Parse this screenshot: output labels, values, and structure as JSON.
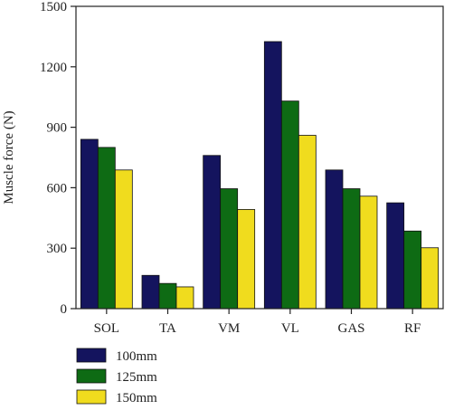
{
  "chart_data": {
    "type": "bar",
    "categories": [
      "SOL",
      "TA",
      "VM",
      "VL",
      "GAS",
      "RF"
    ],
    "series": [
      {
        "name": "100mm",
        "color": "#14145e",
        "values": [
          840,
          165,
          760,
          1325,
          688,
          525
        ]
      },
      {
        "name": "125mm",
        "color": "#0e6b14",
        "values": [
          800,
          125,
          595,
          1030,
          595,
          385
        ]
      },
      {
        "name": "150mm",
        "color": "#f0dc1e",
        "values": [
          688,
          108,
          492,
          860,
          558,
          302
        ]
      }
    ],
    "ylabel": "Muscle force (N)",
    "xlabel": "",
    "ylim": [
      0,
      1500
    ],
    "yticks": [
      0,
      300,
      600,
      900,
      1200,
      1500
    ],
    "grid": false,
    "legend_position": "bottom-left"
  }
}
